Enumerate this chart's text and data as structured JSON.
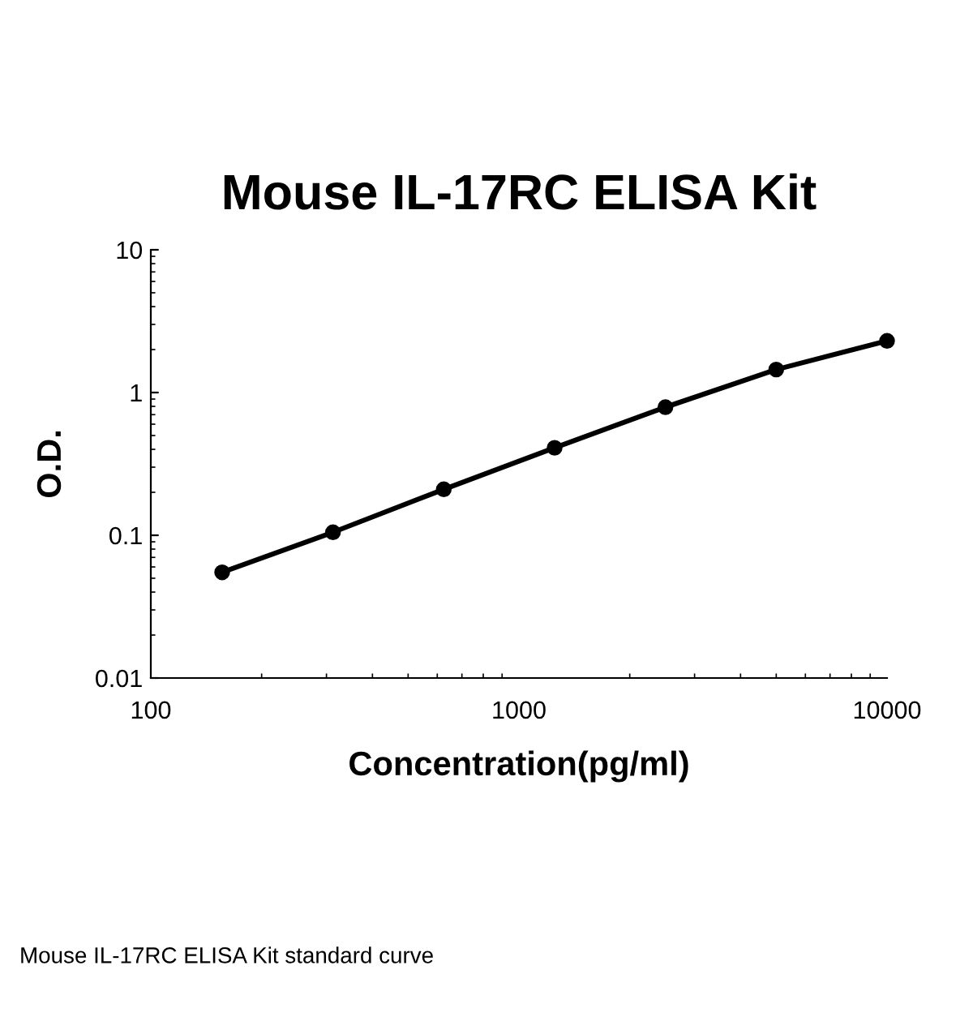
{
  "chart_data": {
    "type": "line",
    "title": "Mouse IL-17RC ELISA Kit",
    "xlabel": "Concentration(pg/ml)",
    "ylabel": "O.D.",
    "x": [
      156.25,
      312.5,
      625,
      1250,
      2500,
      5000,
      10000
    ],
    "series": [
      {
        "color": "#000000",
        "values": [
          0.055,
          0.105,
          0.21,
          0.41,
          0.79,
          1.45,
          2.3
        ]
      }
    ],
    "log": "xy",
    "xlim": [
      100,
      10000
    ],
    "ylim": [
      0.01,
      10
    ],
    "xticks": [
      100,
      1000,
      10000
    ],
    "yticks": [
      0.01,
      0.1,
      1,
      10
    ],
    "marker": "circle",
    "line_style": "solid",
    "grid": false,
    "legend": false,
    "annotations": [
      "Mouse IL-17RC ELISA Kit standard curve"
    ]
  }
}
